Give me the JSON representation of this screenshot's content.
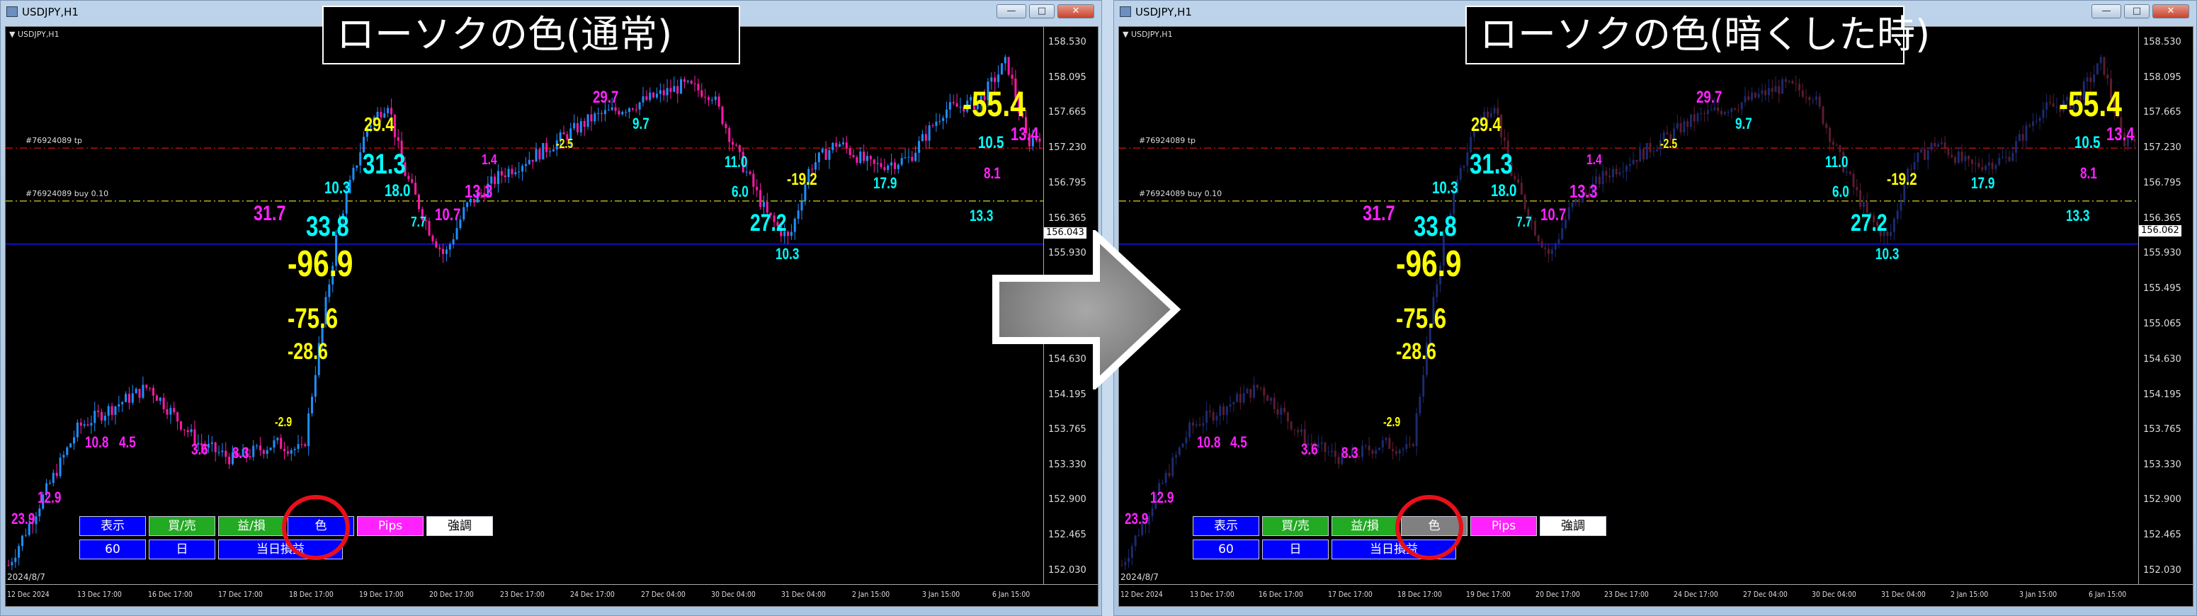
{
  "windows": [
    {
      "title": "USDJPY,H1",
      "symbol_label": "▼ USDJPY,H1",
      "caption": "ローソクの色(通常)",
      "candle_mode": "normal",
      "current_price": "156.043",
      "bull_color": "#1e8fff",
      "bear_color": "#ff1aa8",
      "color_button_bg": "#0000ff"
    },
    {
      "title": "USDJPY,H1",
      "symbol_label": "▼ USDJPY,H1",
      "caption": "ローソクの色(暗くした時)",
      "candle_mode": "dark",
      "current_price": "156.062",
      "bull_color": "#1c2a70",
      "bear_color": "#5c1c30",
      "color_button_bg": "#808080"
    }
  ],
  "window_buttons": {
    "minimize": "—",
    "maximize": "□",
    "close": "✕"
  },
  "price_axis": [
    "158.530",
    "158.095",
    "157.665",
    "157.230",
    "156.795",
    "156.365",
    "155.930",
    "155.495",
    "155.065",
    "154.630",
    "154.195",
    "153.765",
    "153.330",
    "152.900",
    "152.465",
    "152.030"
  ],
  "time_axis": [
    "12 Dec 2024",
    "13 Dec 17:00",
    "16 Dec 17:00",
    "17 Dec 17:00",
    "18 Dec 17:00",
    "19 Dec 17:00",
    "20 Dec 17:00",
    "23 Dec 17:00",
    "24 Dec 17:00",
    "27 Dec 04:00",
    "30 Dec 04:00",
    "31 Dec 04:00",
    "2 Jan 15:00",
    "3 Jan 15:00",
    "6 Jan 15:00"
  ],
  "order_lines": [
    {
      "label": "#76924089 tp",
      "price": 157.23,
      "color": "#b01010"
    },
    {
      "label": "#76924089 buy 0.10",
      "price": 156.58,
      "color": "#b0b020"
    }
  ],
  "bid_line": {
    "price": 156.05,
    "color": "#1010c0"
  },
  "date_stamp": "2024/8/7",
  "price_path": [
    [
      0,
      152.1
    ],
    [
      0.034,
      152.95
    ],
    [
      0.068,
      153.8
    ],
    [
      0.136,
      154.3
    ],
    [
      0.184,
      153.6
    ],
    [
      0.218,
      153.4
    ],
    [
      0.259,
      153.6
    ],
    [
      0.286,
      153.5
    ],
    [
      0.3,
      154.7
    ],
    [
      0.32,
      156.3
    ],
    [
      0.348,
      157.5
    ],
    [
      0.368,
      157.8
    ],
    [
      0.382,
      157.0
    ],
    [
      0.409,
      156.2
    ],
    [
      0.423,
      155.9
    ],
    [
      0.443,
      156.5
    ],
    [
      0.477,
      156.9
    ],
    [
      0.518,
      157.2
    ],
    [
      0.566,
      157.6
    ],
    [
      0.614,
      157.8
    ],
    [
      0.654,
      158.0
    ],
    [
      0.682,
      157.9
    ],
    [
      0.709,
      157.1
    ],
    [
      0.736,
      156.4
    ],
    [
      0.757,
      156.1
    ],
    [
      0.777,
      157.0
    ],
    [
      0.804,
      157.3
    ],
    [
      0.838,
      157.0
    ],
    [
      0.873,
      157.1
    ],
    [
      0.907,
      157.7
    ],
    [
      0.941,
      157.8
    ],
    [
      0.968,
      158.3
    ],
    [
      0.988,
      157.3
    ],
    [
      1,
      157.4
    ]
  ],
  "trade_labels": [
    {
      "text": "23.9",
      "color": "#ff22ff"
    },
    {
      "text": "12.9",
      "color": "#ff22ff"
    },
    {
      "text": "10.8",
      "color": "#ff22ff"
    },
    {
      "text": "4.5",
      "color": "#ff22ff"
    },
    {
      "text": "3.6",
      "color": "#ff22ff"
    },
    {
      "text": "8.3",
      "color": "#ff22ff"
    },
    {
      "text": "-2.9",
      "color": "#ffff00"
    },
    {
      "text": "-28.6",
      "color": "#ffff00"
    },
    {
      "text": "-75.6",
      "color": "#ffff00"
    },
    {
      "text": "-96.9",
      "color": "#ffff00"
    },
    {
      "text": "33.8",
      "color": "#00ffff"
    },
    {
      "text": "31.7",
      "color": "#ff22ff"
    },
    {
      "text": "10.3",
      "color": "#00ffff"
    },
    {
      "text": "29.4",
      "color": "#ffff00"
    },
    {
      "text": "31.3",
      "color": "#00ffff"
    },
    {
      "text": "18.0",
      "color": "#00ffff"
    },
    {
      "text": "7.7",
      "color": "#00ffff"
    },
    {
      "text": "10.7",
      "color": "#ff22ff"
    },
    {
      "text": "13.3",
      "color": "#ff22ff"
    },
    {
      "text": "1.4",
      "color": "#ff22ff"
    },
    {
      "text": "-2.5",
      "color": "#ffff00"
    },
    {
      "text": "29.7",
      "color": "#ff22ff"
    },
    {
      "text": "9.7",
      "color": "#00ffff"
    },
    {
      "text": "11.0",
      "color": "#00ffff"
    },
    {
      "text": "6.0",
      "color": "#00ffff"
    },
    {
      "text": "27.2",
      "color": "#00ffff"
    },
    {
      "text": "-19.2",
      "color": "#ffff00"
    },
    {
      "text": "10.3",
      "color": "#00ffff"
    },
    {
      "text": "17.9",
      "color": "#00ffff"
    },
    {
      "text": "13.3",
      "color": "#00ffff"
    },
    {
      "text": "8.1",
      "color": "#ff22ff"
    },
    {
      "text": "10.5",
      "color": "#00ffff"
    },
    {
      "text": "-55.4",
      "color": "#ffff00"
    },
    {
      "text": "13.4",
      "color": "#ff22ff"
    }
  ],
  "panel_buttons": [
    {
      "label": "表示",
      "bg": "#0000ff",
      "fg": "#ffffff"
    },
    {
      "label": "買/売",
      "bg": "#22aa22",
      "fg": "#ffffff"
    },
    {
      "label": "益/損",
      "bg": "#22aa22",
      "fg": "#ffffff"
    },
    {
      "label": "色",
      "bg": "color",
      "fg": "#ffffff"
    },
    {
      "label": "Pips",
      "bg": "#ff22ff",
      "fg": "#ffffff"
    },
    {
      "label": "強調",
      "bg": "#ffffff",
      "fg": "#000000"
    },
    {
      "label": "60",
      "bg": "#0000ff",
      "fg": "#ffffff"
    },
    {
      "label": "日",
      "bg": "#0000ff",
      "fg": "#ffffff"
    },
    {
      "label": "当日損益",
      "bg": "#0000ff",
      "fg": "#ffffff"
    }
  ],
  "highlight_color": "#e8101a",
  "arrow_color": "#8a8a8a"
}
